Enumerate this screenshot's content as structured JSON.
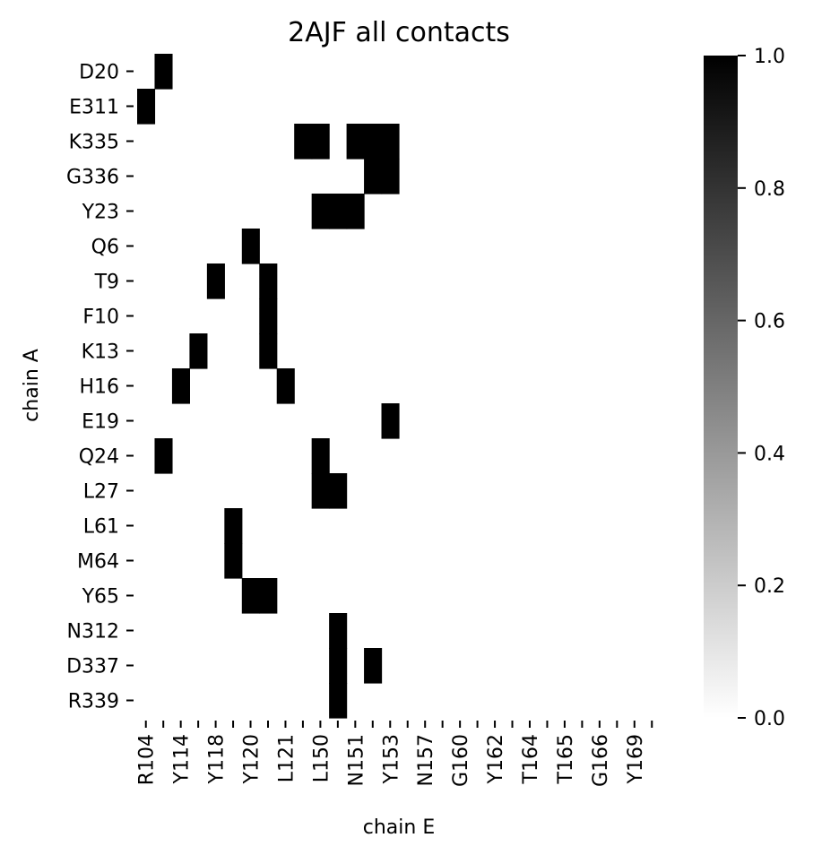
{
  "chart_data": {
    "type": "heatmap",
    "title": "2AJF all contacts",
    "xlabel": "chain E",
    "ylabel": "chain A",
    "x_categories": [
      "R104",
      "",
      "Y114",
      "",
      "Y118",
      "",
      "Y120",
      "",
      "L121",
      "",
      "L150",
      "",
      "N151",
      "",
      "Y153",
      "",
      "N157",
      "",
      "G160",
      "",
      "Y162",
      "",
      "T164",
      "",
      "T165",
      "",
      "G166",
      "",
      "Y169",
      ""
    ],
    "y_categories": [
      "D20",
      "E311",
      "K335",
      "G336",
      "Y23",
      "Q6",
      "T9",
      "F10",
      "K13",
      "H16",
      "E19",
      "Q24",
      "L27",
      "L61",
      "M64",
      "Y65",
      "N312",
      "D337",
      "R339"
    ],
    "value_range": [
      0,
      1
    ],
    "colormap": "white-to-black",
    "colorbar_ticks": [
      "0.0",
      "0.2",
      "0.4",
      "0.6",
      "0.8",
      "1.0"
    ],
    "cells": [
      [
        0,
        1
      ],
      [
        1,
        0
      ],
      [
        2,
        9
      ],
      [
        2,
        10
      ],
      [
        2,
        12
      ],
      [
        2,
        13
      ],
      [
        2,
        14
      ],
      [
        3,
        13
      ],
      [
        3,
        14
      ],
      [
        4,
        10
      ],
      [
        4,
        11
      ],
      [
        4,
        12
      ],
      [
        5,
        6
      ],
      [
        6,
        4
      ],
      [
        6,
        7
      ],
      [
        7,
        7
      ],
      [
        8,
        3
      ],
      [
        8,
        7
      ],
      [
        9,
        2
      ],
      [
        9,
        8
      ],
      [
        10,
        14
      ],
      [
        11,
        1
      ],
      [
        11,
        10
      ],
      [
        12,
        10
      ],
      [
        12,
        11
      ],
      [
        13,
        5
      ],
      [
        14,
        5
      ],
      [
        15,
        6
      ],
      [
        15,
        7
      ],
      [
        16,
        11
      ],
      [
        17,
        11
      ],
      [
        17,
        13
      ],
      [
        18,
        11
      ]
    ],
    "cells_format": "[row_index, column_index] = 1.0, all others 0.0"
  }
}
